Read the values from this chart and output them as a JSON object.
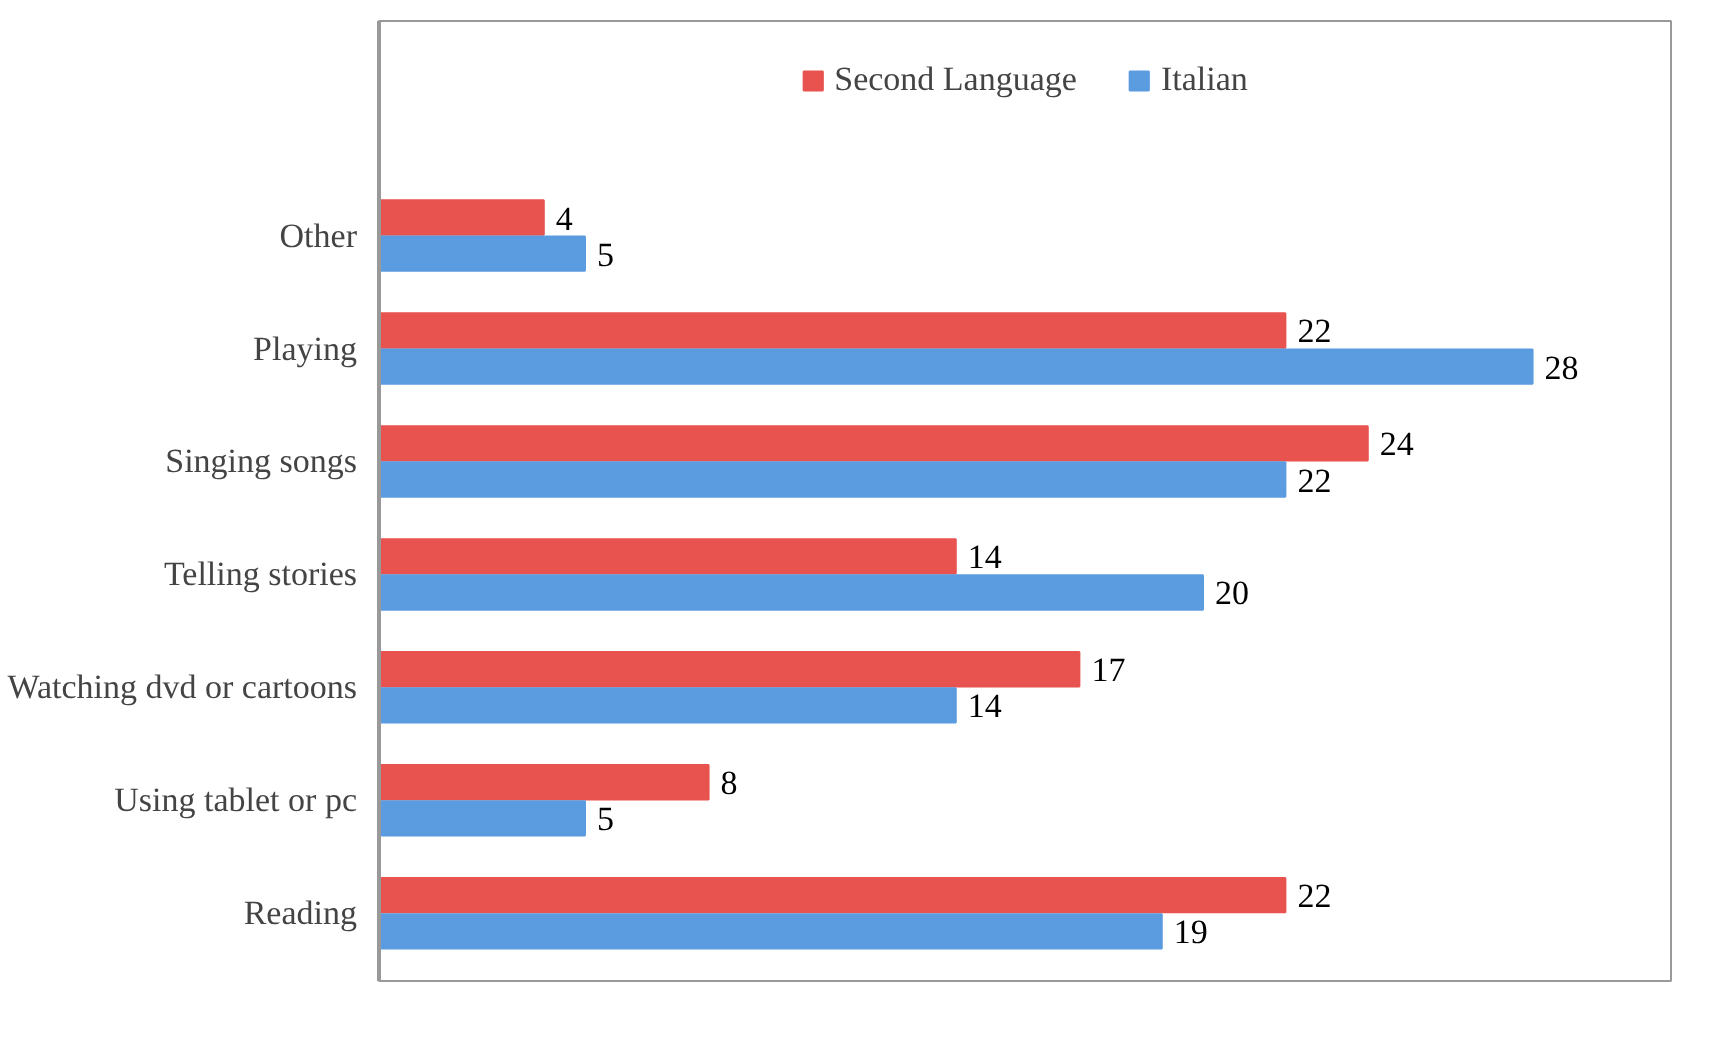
{
  "chart_data": {
    "type": "bar",
    "orientation": "horizontal",
    "categories": [
      "Other",
      "Playing",
      "Singing songs",
      "Telling stories",
      "Watching dvd or cartoons",
      "Using tablet or pc",
      "Reading"
    ],
    "series": [
      {
        "name": "Second Language",
        "color": "#e8534f",
        "values": [
          4,
          22,
          24,
          14,
          17,
          8,
          22
        ]
      },
      {
        "name": "Italian",
        "color": "#5b9be0",
        "values": [
          5,
          28,
          22,
          20,
          14,
          5,
          19
        ]
      }
    ],
    "data_labels": true,
    "legend": "top",
    "grid": false
  }
}
